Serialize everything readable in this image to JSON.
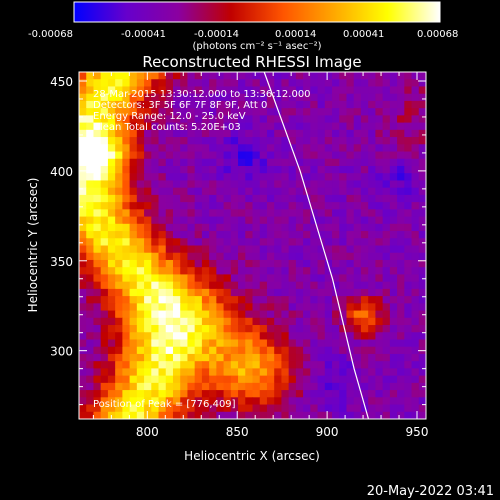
{
  "colorbar": {
    "colormap": [
      "#0000ff",
      "#6600cc",
      "#8b00a0",
      "#c00000",
      "#ff5500",
      "#ffaa00",
      "#ffff00",
      "#ffffff"
    ],
    "tick_labels": [
      "-0.00068",
      "-0.00041",
      "-0.00014",
      "0.00014",
      "0.00041",
      "0.00068"
    ],
    "unit_label": "(photons cm⁻² s⁻¹ asec⁻²)"
  },
  "chart_data": {
    "type": "heatmap",
    "title": "Reconstructed RHESSI Image",
    "xlabel": "Heliocentric X (arcsec)",
    "ylabel": "Heliocentric Y (arcsec)",
    "xlim": [
      762,
      955
    ],
    "ylim": [
      262,
      455
    ],
    "x_ticks": [
      800,
      850,
      900,
      950
    ],
    "y_ticks": [
      300,
      350,
      400,
      450
    ],
    "value_range": [
      -0.00068,
      0.00068
    ],
    "peak_position": [
      776,
      409
    ],
    "limb_curve": [
      [
        865,
        455
      ],
      [
        885,
        400
      ],
      [
        903,
        340
      ],
      [
        915,
        290
      ],
      [
        923,
        262
      ]
    ],
    "info_lines": [
      "28-Mar-2015 13:30:12.000 to 13:36:12.000",
      "Detectors: 3F 5F 6F 7F 8F 9F, Att 0",
      "Energy Range: 12.0 - 25.0 keV",
      "Clean    Total counts: 5.20E+03"
    ],
    "peak_label": "Position of Peak = [776,409]",
    "timestamp": "20-May-2022 03:41"
  }
}
